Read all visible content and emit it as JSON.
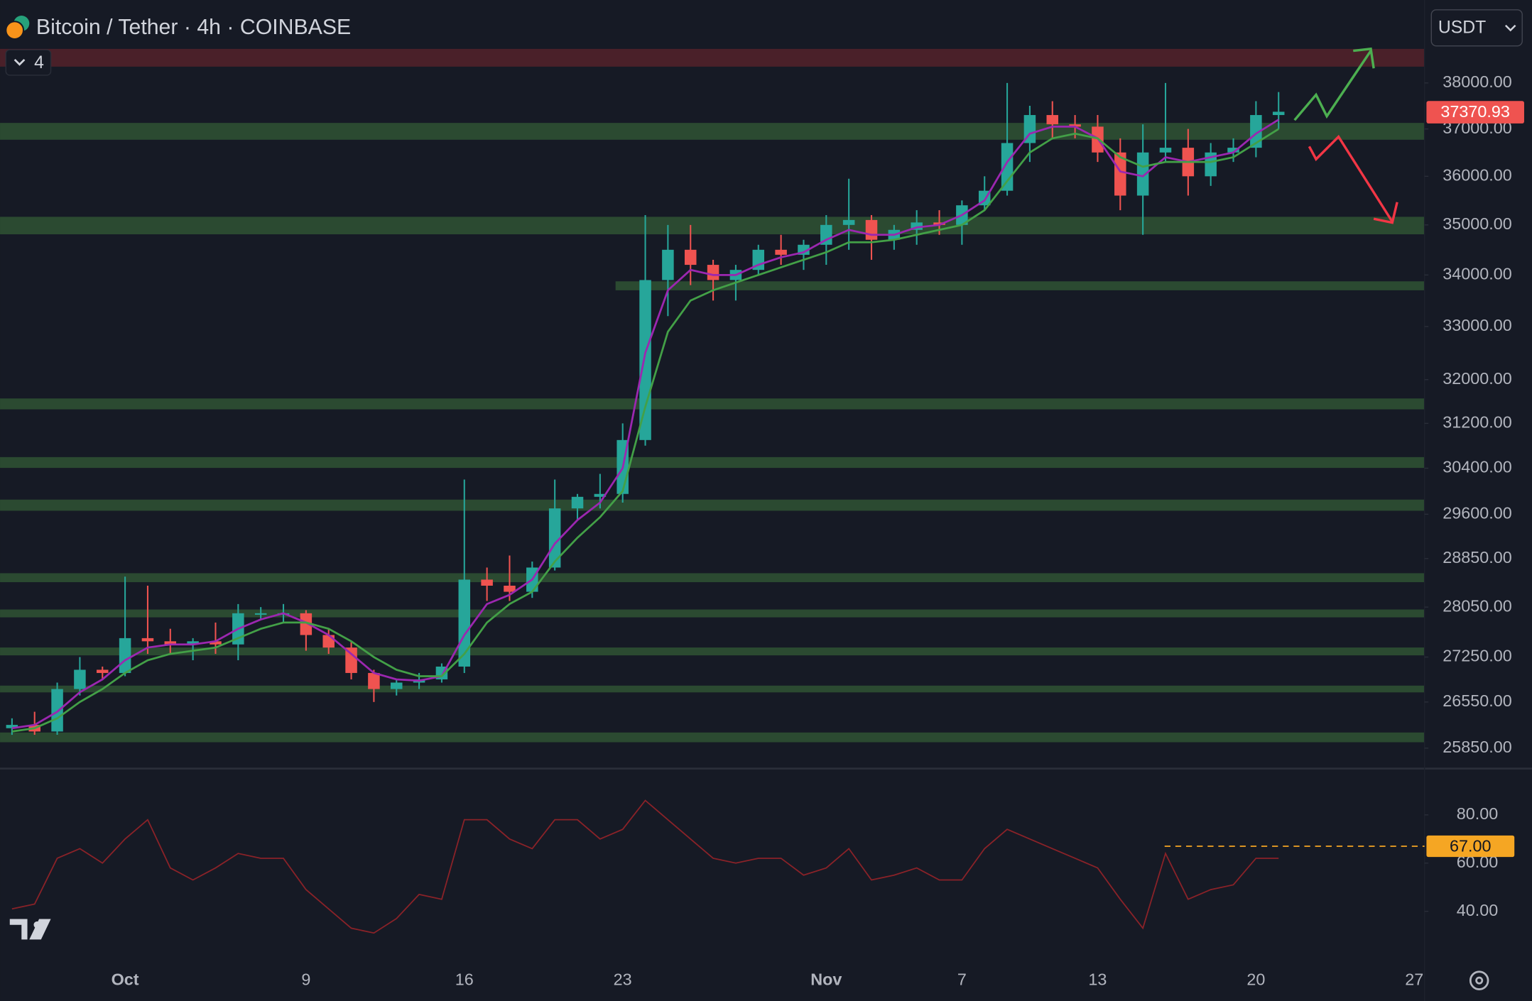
{
  "header": {
    "title": "Bitcoin / Tether · 4h · COINBASE",
    "indicator_count": "4",
    "currency": "USDT"
  },
  "chart_data": {
    "type": "candlestick",
    "log_scale": true,
    "grid": false,
    "up_color": "#26a69a",
    "down_color": "#ef5350",
    "categories": [
      null,
      null,
      null,
      null,
      null,
      "Oct",
      null,
      null,
      null,
      null,
      null,
      null,
      null,
      "9",
      null,
      null,
      null,
      null,
      null,
      null,
      "16",
      null,
      null,
      null,
      null,
      null,
      null,
      "23",
      null,
      null,
      null,
      null,
      null,
      null,
      null,
      null,
      "Nov",
      null,
      null,
      null,
      null,
      null,
      "7",
      null,
      null,
      null,
      null,
      null,
      "13",
      null,
      null,
      null,
      null,
      null,
      null,
      "20",
      null,
      null,
      null,
      null,
      null,
      null,
      "27"
    ],
    "open": [
      26150,
      26200,
      26100,
      26750,
      27050,
      27000,
      27550,
      27500,
      27450,
      27500,
      27450,
      27950,
      27950,
      27950,
      27600,
      27400,
      27000,
      26750,
      26850,
      26900,
      27100,
      28500,
      28400,
      28300,
      28700,
      29700,
      29900,
      29950,
      30900,
      33900,
      34500,
      34200,
      33900,
      34100,
      34500,
      34400,
      34600,
      35000,
      35100,
      34700,
      34900,
      35050,
      35000,
      35400,
      35700,
      36700,
      37300,
      37100,
      37050,
      36500,
      35600,
      36500,
      36600,
      36000,
      36500,
      36600,
      37300,
      null,
      null,
      null,
      null,
      null,
      null
    ],
    "high": [
      26300,
      26400,
      26850,
      27250,
      27100,
      28550,
      28400,
      27700,
      27550,
      27800,
      28100,
      28050,
      28100,
      28000,
      27700,
      27500,
      27050,
      26900,
      27000,
      27150,
      30200,
      28700,
      28900,
      28800,
      30200,
      29950,
      30300,
      31200,
      35200,
      35000,
      35000,
      34300,
      34200,
      34600,
      34800,
      34700,
      35200,
      35950,
      35200,
      35000,
      35300,
      35300,
      35500,
      36000,
      38000,
      37500,
      37600,
      37300,
      37300,
      36800,
      37100,
      38000,
      37000,
      36700,
      36800,
      37600,
      37800,
      null,
      null,
      null,
      null,
      null,
      null
    ],
    "low": [
      26050,
      26050,
      26050,
      26650,
      26900,
      26950,
      27300,
      27300,
      27200,
      27300,
      27200,
      27850,
      27800,
      27350,
      27300,
      26900,
      26550,
      26650,
      26750,
      26850,
      27000,
      28150,
      28150,
      28200,
      28650,
      29500,
      29700,
      29800,
      30800,
      33200,
      33800,
      33500,
      33500,
      34000,
      34200,
      34100,
      34200,
      34500,
      34300,
      34500,
      34600,
      34800,
      34600,
      35300,
      35600,
      36300,
      36800,
      36800,
      36300,
      35300,
      34800,
      36300,
      35600,
      35800,
      36300,
      36400,
      37000,
      null,
      null,
      null,
      null,
      null,
      null
    ],
    "close": [
      26200,
      26100,
      26750,
      27050,
      27000,
      27550,
      27500,
      27450,
      27500,
      27450,
      27950,
      27950,
      27950,
      27600,
      27400,
      27000,
      26750,
      26850,
      26900,
      27100,
      28500,
      28400,
      28300,
      28700,
      29700,
      29900,
      29950,
      30900,
      33900,
      34500,
      34200,
      33900,
      34100,
      34500,
      34400,
      34600,
      35000,
      35100,
      34700,
      34900,
      35050,
      35000,
      35400,
      35700,
      36700,
      37300,
      37100,
      37050,
      36500,
      35600,
      36500,
      36600,
      36000,
      36500,
      36600,
      37300,
      37370.93,
      null,
      null,
      null,
      null,
      null,
      null
    ],
    "series": [
      {
        "color": "#9c27b0",
        "values": [
          26150,
          26200,
          26400,
          26700,
          26900,
          27200,
          27400,
          27450,
          27450,
          27500,
          27700,
          27850,
          27950,
          27800,
          27600,
          27300,
          27000,
          26900,
          26880,
          26950,
          27600,
          28100,
          28250,
          28500,
          29100,
          29500,
          29800,
          30400,
          32500,
          33700,
          34100,
          34000,
          34000,
          34200,
          34350,
          34450,
          34700,
          34900,
          34800,
          34800,
          34950,
          35000,
          35200,
          35500,
          36300,
          36900,
          37050,
          37050,
          36800,
          36100,
          36000,
          36400,
          36300,
          36400,
          36500,
          36900,
          37200,
          null,
          null,
          null,
          null,
          null,
          null
        ]
      },
      {
        "color": "#43a047",
        "values": [
          26100,
          26150,
          26300,
          26550,
          26750,
          27000,
          27200,
          27300,
          27350,
          27400,
          27550,
          27700,
          27800,
          27800,
          27700,
          27500,
          27250,
          27050,
          26950,
          26950,
          27300,
          27800,
          28100,
          28300,
          28800,
          29200,
          29550,
          30000,
          31500,
          32900,
          33500,
          33700,
          33850,
          34000,
          34150,
          34300,
          34450,
          34650,
          34650,
          34700,
          34800,
          34900,
          35000,
          35300,
          35900,
          36500,
          36800,
          36900,
          36800,
          36400,
          36200,
          36300,
          36300,
          36300,
          36400,
          36700,
          37000,
          null,
          null,
          null,
          null,
          null,
          null
        ]
      }
    ],
    "zones": [
      {
        "low": 38360,
        "high": 38757,
        "color": "#4a2029"
      },
      {
        "low": 36770,
        "high": 37130,
        "color": "#2b4a31"
      },
      {
        "low": 34810,
        "high": 35165,
        "color": "#2b4a31"
      },
      {
        "low": 33700,
        "high": 33875,
        "color": "#2b4a31"
      },
      {
        "low": 31454,
        "high": 31653,
        "color": "#2b4a31"
      },
      {
        "low": 30405,
        "high": 30596,
        "color": "#2b4a31"
      },
      {
        "low": 29660,
        "high": 29852,
        "color": "#2b4a31"
      },
      {
        "low": 28458,
        "high": 28606,
        "color": "#2b4a31"
      },
      {
        "low": 27884,
        "high": 28011,
        "color": "#2b4a31"
      },
      {
        "low": 27277,
        "high": 27401,
        "color": "#2b4a31"
      },
      {
        "low": 26698,
        "high": 26803,
        "color": "#2b4a31"
      },
      {
        "low": 25938,
        "high": 26085,
        "color": "#2b4a31"
      }
    ],
    "ylim": [
      25560,
      39870
    ],
    "yticks": [
      {
        "value": 38000,
        "label": "38000.00"
      },
      {
        "value": 37000,
        "label": "37000.00"
      },
      {
        "value": 36000,
        "label": "36000.00"
      },
      {
        "value": 35000,
        "label": "35000.00"
      },
      {
        "value": 34000,
        "label": "34000.00"
      },
      {
        "value": 33000,
        "label": "33000.00"
      },
      {
        "value": 32000,
        "label": "32000.00"
      },
      {
        "value": 31200,
        "label": "31200.00"
      },
      {
        "value": 30400,
        "label": "30400.00"
      },
      {
        "value": 29600,
        "label": "29600.00"
      },
      {
        "value": 28850,
        "label": "28850.00"
      },
      {
        "value": 28050,
        "label": "28050.00"
      },
      {
        "value": 27250,
        "label": "27250.00"
      },
      {
        "value": 26550,
        "label": "26550.00"
      },
      {
        "value": 25850,
        "label": "25850.00"
      }
    ],
    "rsi": {
      "color": "#8a2228",
      "values": [
        41,
        43,
        62,
        66,
        60,
        70,
        78,
        58,
        53,
        58,
        64,
        62,
        62,
        49,
        41,
        33,
        31,
        37,
        47,
        45,
        78,
        78,
        70,
        66,
        78,
        78,
        70,
        74,
        86,
        78,
        70,
        62,
        60,
        62,
        62,
        55,
        58,
        66,
        53,
        55,
        58,
        53,
        53,
        66,
        74,
        70,
        66,
        62,
        58,
        45,
        33,
        64,
        45,
        49,
        51,
        62,
        62,
        null,
        null,
        null,
        null,
        null,
        null
      ],
      "ylim": [
        19,
        98
      ],
      "yticks": [
        {
          "value": 80,
          "label": "80.00"
        },
        {
          "value": 60,
          "label": "60.00"
        },
        {
          "value": 40,
          "label": "40.00"
        }
      ],
      "level": {
        "value": 67,
        "label": "67.00",
        "color": "#f5a623"
      }
    }
  }
}
